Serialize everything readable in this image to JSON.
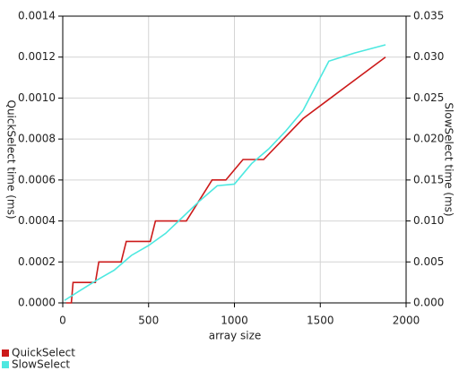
{
  "chart_data": {
    "type": "line",
    "xlabel": "array size",
    "ylabel": "QuickSelect time (ms)",
    "y2label": "SlowSelect time (ms)",
    "xlim": [
      0,
      2000
    ],
    "xticks": [
      0,
      500,
      1000,
      1500,
      2000
    ],
    "ylim": [
      0,
      0.0014
    ],
    "yticks": [
      {
        "value": 0,
        "label": "0.0000"
      },
      {
        "value": 0.0002,
        "label": "0.0002"
      },
      {
        "value": 0.0004,
        "label": "0.0004"
      },
      {
        "value": 0.0006,
        "label": "0.0006"
      },
      {
        "value": 0.0008,
        "label": "0.0008"
      },
      {
        "value": 0.001,
        "label": "0.0010"
      },
      {
        "value": 0.0012,
        "label": "0.0012"
      },
      {
        "value": 0.0014,
        "label": "0.0014"
      }
    ],
    "y2lim": [
      0,
      0.035
    ],
    "y2ticks": [
      {
        "value": 0,
        "label": "0.000"
      },
      {
        "value": 0.005,
        "label": "0.005"
      },
      {
        "value": 0.01,
        "label": "0.010"
      },
      {
        "value": 0.015,
        "label": "0.015"
      },
      {
        "value": 0.02,
        "label": "0.020"
      },
      {
        "value": 0.025,
        "label": "0.025"
      },
      {
        "value": 0.03,
        "label": "0.030"
      },
      {
        "value": 0.035,
        "label": "0.035"
      }
    ],
    "grid": true,
    "legend": "bottom-left",
    "series": [
      {
        "name": "QuickSelect",
        "color": "#cc1a1a",
        "axis": "y",
        "x": [
          20,
          50,
          60,
          190,
          210,
          340,
          370,
          510,
          540,
          720,
          870,
          950,
          1050,
          1170,
          1400,
          1560,
          1880
        ],
        "values": [
          0,
          0,
          0.0001,
          0.0001,
          0.0002,
          0.0002,
          0.0003,
          0.0003,
          0.0004,
          0.0004,
          0.0006,
          0.0006,
          0.0007,
          0.0007,
          0.0009,
          0.001,
          0.0012
        ]
      },
      {
        "name": "SlowSelect",
        "color": "#4de8e0",
        "axis": "y2",
        "x": [
          10,
          100,
          200,
          300,
          400,
          500,
          600,
          700,
          800,
          900,
          1000,
          1100,
          1200,
          1300,
          1400,
          1550,
          1700,
          1880
        ],
        "values": [
          0.0003,
          0.0015,
          0.0028,
          0.004,
          0.0058,
          0.007,
          0.0085,
          0.0105,
          0.0125,
          0.0143,
          0.0145,
          0.017,
          0.0188,
          0.021,
          0.0235,
          0.0295,
          0.0305,
          0.0315
        ]
      }
    ]
  }
}
